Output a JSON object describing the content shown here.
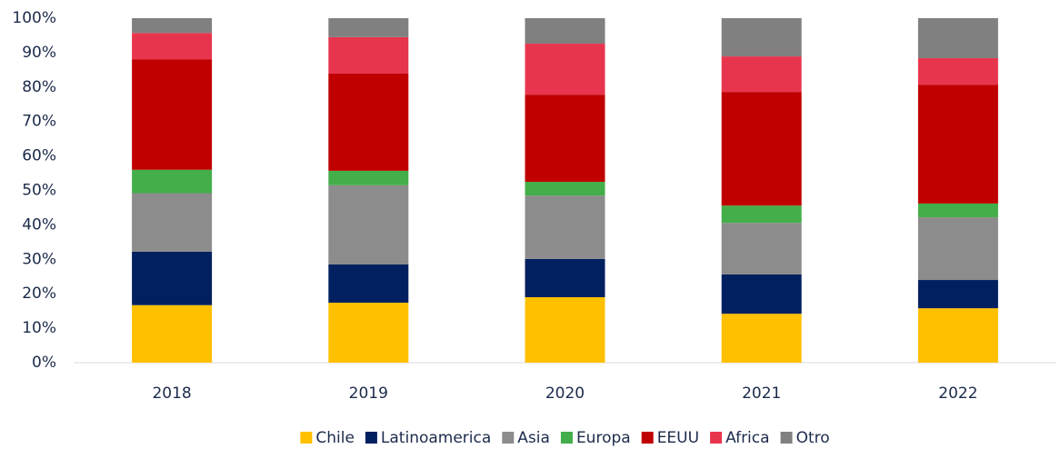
{
  "chart_data": {
    "type": "stacked_bar",
    "categories": [
      "2018",
      "2019",
      "2020",
      "2021",
      "2022"
    ],
    "series": [
      {
        "name": "Chile",
        "color": "#FFC000",
        "values": [
          16.7,
          17.4,
          19,
          14.2,
          15.8
        ]
      },
      {
        "name": "Latinoamerica",
        "color": "#002060",
        "values": [
          15.5,
          11.1,
          11.1,
          11.4,
          8.2
        ]
      },
      {
        "name": "Asia",
        "color": "#8C8C8C",
        "values": [
          17,
          23,
          18.4,
          15,
          18.2
        ]
      },
      {
        "name": "Europa",
        "color": "#43AE4A",
        "values": [
          6.8,
          4.2,
          4,
          5,
          4
        ]
      },
      {
        "name": "EEUU",
        "color": "#C00000",
        "values": [
          32,
          28.2,
          25.3,
          33,
          34.5
        ]
      },
      {
        "name": "Africa",
        "color": "#E8354E",
        "values": [
          7.7,
          10.6,
          14.8,
          10.3,
          7.7
        ]
      },
      {
        "name": "Otro",
        "color": "#808080",
        "values": [
          4.3,
          5.5,
          7.4,
          11.1,
          11.6
        ]
      }
    ],
    "ylim": [
      0,
      100
    ],
    "yticks": [
      {
        "value": 0,
        "label": "0%"
      },
      {
        "value": 10,
        "label": "10%"
      },
      {
        "value": 20,
        "label": "20%"
      },
      {
        "value": 30,
        "label": "30%"
      },
      {
        "value": 40,
        "label": "40%"
      },
      {
        "value": 50,
        "label": "50%"
      },
      {
        "value": 60,
        "label": "60%"
      },
      {
        "value": 70,
        "label": "70%"
      },
      {
        "value": 80,
        "label": "80%"
      },
      {
        "value": 90,
        "label": "90%"
      },
      {
        "value": 100,
        "label": "100%"
      }
    ],
    "legend": "bottom"
  }
}
